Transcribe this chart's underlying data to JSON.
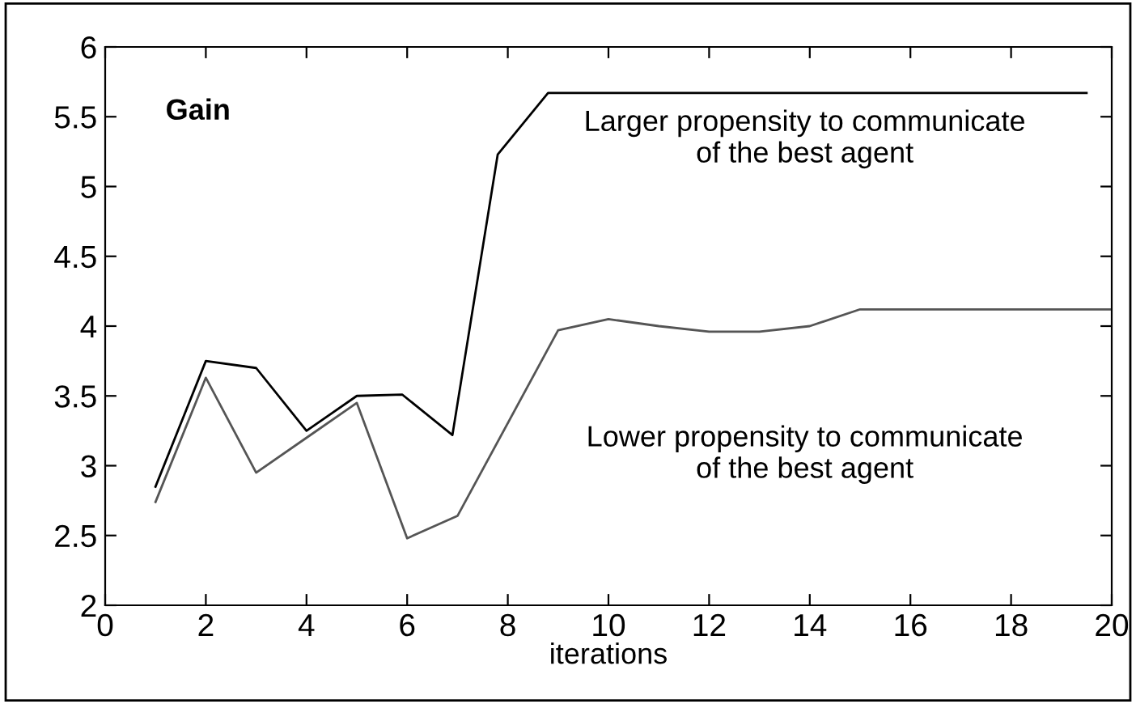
{
  "chart_data": {
    "type": "line",
    "ylabel": "Gain",
    "xlabel": "iterations",
    "xlim": [
      0,
      20
    ],
    "xticks": [
      0,
      2,
      4,
      6,
      8,
      10,
      12,
      14,
      16,
      18,
      20
    ],
    "ylim": [
      2,
      6
    ],
    "yticks": [
      2,
      2.5,
      3,
      3.5,
      4,
      4.5,
      5,
      5.5,
      6
    ],
    "grid": false,
    "legend": false,
    "marker": "none",
    "line_style": "solid",
    "series": [
      {
        "name": "Larger propensity to communicate\nof the best agent",
        "color": "#000000",
        "x": [
          1,
          2,
          3,
          4,
          5,
          5.9,
          6.9,
          7.8,
          8.8,
          19.5
        ],
        "values": [
          2.85,
          3.75,
          3.7,
          3.25,
          3.5,
          3.51,
          3.22,
          5.23,
          5.67,
          5.67
        ]
      },
      {
        "name": "Lower propensity to communicate\nof the best agent",
        "color": "#555555",
        "x": [
          1,
          2,
          3,
          4,
          5,
          6,
          7,
          9,
          10,
          11,
          12,
          13,
          14,
          15,
          20
        ],
        "values": [
          2.74,
          3.63,
          2.95,
          3.2,
          3.45,
          2.48,
          2.64,
          3.97,
          4.05,
          4.0,
          3.96,
          3.96,
          4.0,
          4.12,
          4.12
        ]
      }
    ]
  }
}
